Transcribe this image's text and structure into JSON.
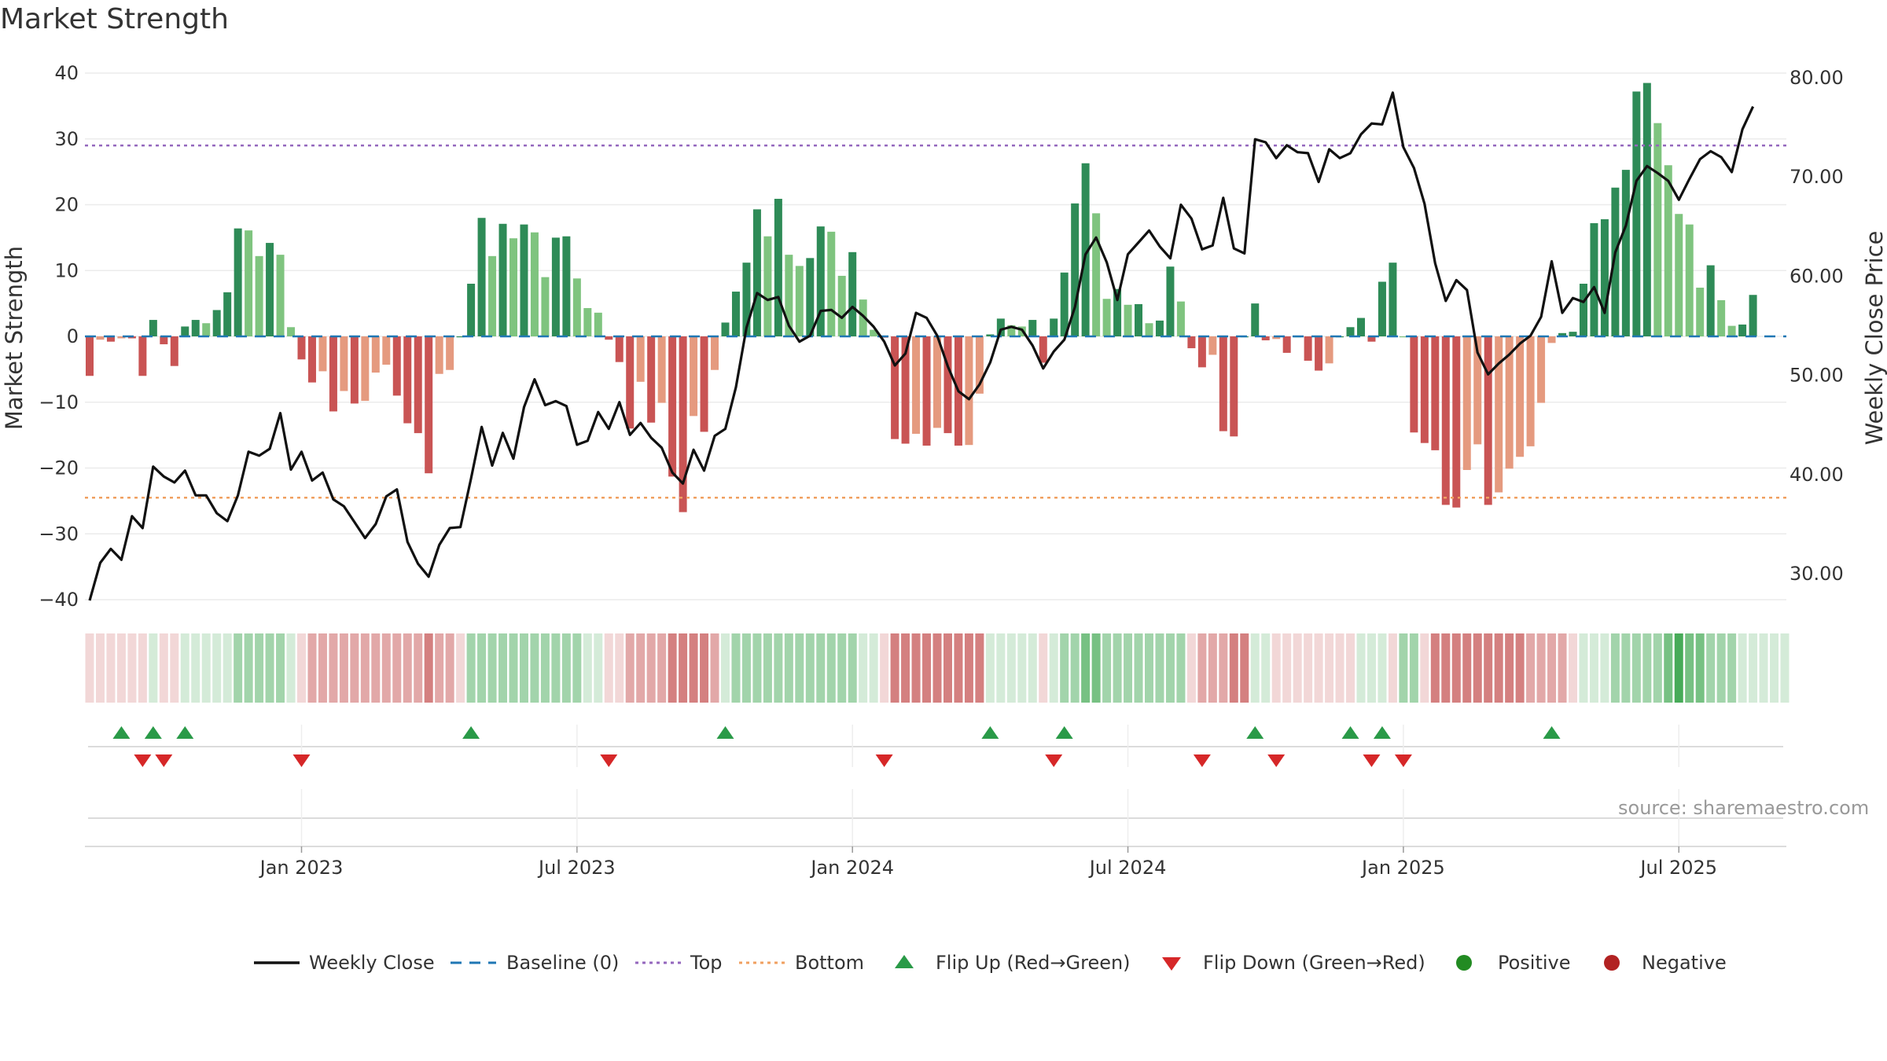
{
  "chart_data": {
    "type": "bar+line",
    "title": "Market Strength",
    "source": "source: sharemaestro.com",
    "left_axis": {
      "label": "Market Strength",
      "ylim": [
        -40,
        40
      ],
      "ticks": [
        "40",
        "30",
        "20",
        "10",
        "0",
        "−10",
        "−20",
        "−30",
        "−40"
      ],
      "tick_values": [
        40,
        30,
        20,
        10,
        0,
        -10,
        -20,
        -30,
        -40
      ]
    },
    "right_axis": {
      "label": "Weekly Close Price",
      "ylim": [
        26,
        80.5
      ],
      "ticks": [
        "80.00",
        "70.00",
        "60.00",
        "50.00",
        "40.00",
        "30.00"
      ],
      "tick_values": [
        80,
        70,
        60,
        50,
        40,
        30
      ]
    },
    "x_ticks": [
      {
        "label": "Jan 2023",
        "week": 20
      },
      {
        "label": "Jul 2023",
        "week": 46
      },
      {
        "label": "Jan 2024",
        "week": 72
      },
      {
        "label": "Jul 2024",
        "week": 98
      },
      {
        "label": "Jan 2025",
        "week": 124
      },
      {
        "label": "Jul 2025",
        "week": 150
      }
    ],
    "top_line": 29,
    "bottom_line": -24.5,
    "strength": [
      -6,
      -0.5,
      -0.8,
      -0.3,
      -0.3,
      -6,
      2.5,
      -1.2,
      -4.5,
      1.5,
      2.5,
      2,
      4,
      6.7,
      16.4,
      16.1,
      12.2,
      14.2,
      12.4,
      1.4,
      -3.5,
      -7,
      -5.3,
      -11.4,
      -8.3,
      -10.2,
      -9.8,
      -5.5,
      -4.3,
      -9,
      -13.2,
      -14.7,
      -20.8,
      -5.7,
      -5.1,
      0,
      8,
      18,
      12.2,
      17.1,
      14.9,
      17,
      15.8,
      9,
      15,
      15.2,
      8.8,
      4.3,
      3.6,
      -0.5,
      -3.9,
      -14,
      -6.9,
      -13.1,
      -10.1,
      -21.3,
      -26.7,
      -12.1,
      -14.5,
      -5.1,
      2.1,
      6.8,
      11.2,
      19.3,
      15.2,
      20.9,
      12.4,
      10.7,
      11.9,
      16.7,
      15.9,
      9.2,
      12.8,
      5.6,
      1,
      -0.2,
      -15.6,
      -16.3,
      -14.8,
      -16.6,
      -13.9,
      -14.7,
      -16.6,
      -16.5,
      -8.7,
      0.3,
      2.7,
      1.7,
      1.5,
      2.5,
      -4,
      2.7,
      9.7,
      20.2,
      26.3,
      18.7,
      5.7,
      7.2,
      4.8,
      4.9,
      2,
      2.4,
      10.6,
      5.3,
      -1.8,
      -4.7,
      -2.8,
      -14.4,
      -15.2,
      0,
      5,
      -0.6,
      -0.4,
      -2.5,
      0,
      -3.7,
      -5.2,
      -4.1,
      0,
      1.4,
      2.8,
      -0.8,
      8.3,
      11.2,
      0,
      -14.6,
      -16.2,
      -17.3,
      -25.6,
      -26,
      -20.3,
      -16.4,
      -25.6,
      -23.7,
      -20.1,
      -18.3,
      -16.7,
      -10.1,
      -1,
      0.5,
      0.7,
      8,
      17.2,
      17.8,
      22.6,
      25.3,
      37.2,
      38.5,
      32.4,
      26,
      18.6,
      17,
      7.4,
      10.8,
      5.5,
      1.6,
      1.8,
      6.3
    ],
    "weekly_close": [
      27.3,
      31.1,
      32.5,
      31.4,
      35.8,
      34.6,
      40.8,
      39.8,
      39.2,
      40.4,
      37.9,
      37.9,
      36.1,
      35.3,
      37.9,
      42.3,
      41.9,
      42.6,
      46.2,
      40.5,
      42.3,
      39.4,
      40.2,
      37.5,
      36.8,
      35.2,
      33.6,
      35,
      37.8,
      38.5,
      33.2,
      31,
      29.7,
      32.9,
      34.6,
      34.7,
      39.6,
      44.8,
      40.9,
      44.2,
      41.6,
      46.8,
      49.6,
      47,
      47.4,
      46.9,
      43,
      43.4,
      46.3,
      44.6,
      47.3,
      44,
      45.2,
      43.7,
      42.7,
      40.2,
      39.1,
      42.5,
      40.4,
      43.9,
      44.6,
      48.8,
      54.8,
      58.3,
      57.6,
      57.9,
      55,
      53.4,
      54,
      56.5,
      56.6,
      55.8,
      56.9,
      56,
      54.9,
      53.4,
      51,
      52.2,
      56.3,
      55.8,
      54,
      50.9,
      48.4,
      47.6,
      49.1,
      51.3,
      54.6,
      54.9,
      54.6,
      53,
      50.7,
      52.4,
      53.6,
      56.9,
      62.2,
      63.9,
      61.4,
      57.6,
      62.2,
      63.4,
      64.6,
      63,
      61.8,
      67.2,
      65.8,
      62.7,
      63.1,
      67.9,
      62.8,
      62.3,
      73.8,
      73.5,
      71.9,
      73.2,
      72.5,
      72.4,
      69.5,
      72.8,
      71.9,
      72.4,
      74.3,
      75.4,
      75.3,
      78.5,
      73,
      70.9,
      67.3,
      61.3,
      57.5,
      59.6,
      58.6,
      52.3,
      50.1,
      51.2,
      52.1,
      53.2,
      54,
      55.9,
      61.5,
      56.3,
      57.8,
      57.4,
      58.9,
      56.3,
      62.4,
      65.1,
      69.6,
      71.1,
      70.4,
      69.6,
      67.7,
      69.8,
      71.8,
      72.6,
      72,
      70.5,
      74.8,
      77.1
    ],
    "heat_tiers": [
      -1,
      -1,
      -1,
      -1,
      -1,
      -1,
      1,
      -1,
      -1,
      1,
      1,
      1,
      1,
      1,
      2,
      2,
      2,
      2,
      2,
      1,
      -1,
      -2,
      -2,
      -2,
      -2,
      -2,
      -2,
      -2,
      -2,
      -2,
      -2,
      -2,
      -3,
      -2,
      -2,
      -1,
      2,
      2,
      2,
      2,
      2,
      2,
      2,
      2,
      2,
      2,
      2,
      1,
      1,
      -1,
      -1,
      -2,
      -2,
      -2,
      -2,
      -3,
      -3,
      -3,
      -3,
      -2,
      1,
      2,
      2,
      2,
      2,
      2,
      2,
      2,
      2,
      2,
      2,
      2,
      2,
      1,
      1,
      -1,
      -3,
      -3,
      -3,
      -3,
      -3,
      -3,
      -3,
      -3,
      -3,
      1,
      1,
      1,
      1,
      1,
      -1,
      1,
      2,
      2,
      3,
      3,
      2,
      2,
      2,
      2,
      2,
      2,
      2,
      2,
      -1,
      -2,
      -2,
      -2,
      -3,
      -3,
      1,
      1,
      -1,
      -1,
      -1,
      -1,
      -1,
      -1,
      -1,
      -1,
      1,
      1,
      1,
      -1,
      2,
      2,
      -1,
      -3,
      -3,
      -3,
      -3,
      -3,
      -3,
      -3,
      -3,
      -3,
      -2,
      -2,
      -2,
      -2,
      -1,
      1,
      1,
      1,
      2,
      2,
      2,
      2,
      2,
      3,
      4,
      3,
      3,
      2,
      2,
      2,
      1,
      1,
      1,
      1,
      1
    ],
    "flip_up_weeks": [
      3,
      6,
      9,
      36,
      60,
      85,
      92,
      110,
      119,
      122,
      138
    ],
    "flip_down_weeks": [
      5,
      7,
      20,
      49,
      75,
      91,
      105,
      112,
      121,
      124
    ],
    "legend": [
      {
        "label": "Weekly Close",
        "kind": "line",
        "color": "#111111"
      },
      {
        "label": "Baseline (0)",
        "kind": "dash",
        "color": "#1f77b4"
      },
      {
        "label": "Top",
        "kind": "dot",
        "color": "#9467bd"
      },
      {
        "label": "Bottom",
        "kind": "dot",
        "color": "#f0a060"
      },
      {
        "label": "Flip Up (Red→Green)",
        "kind": "tri-up",
        "color": "#2a9a48"
      },
      {
        "label": "Flip Down (Green→Red)",
        "kind": "tri-down",
        "color": "#d62728"
      },
      {
        "label": "Positive",
        "kind": "circle",
        "color": "#228b22"
      },
      {
        "label": "Negative",
        "kind": "circle",
        "color": "#b22222"
      }
    ],
    "colors": {
      "strong_pos": "#2e8b57",
      "weak_pos": "#7fc47f",
      "strong_neg": "#c95454",
      "weak_neg": "#e59a7f",
      "price_line": "#111111",
      "baseline": "#1f77b4",
      "top": "#9467bd",
      "bottom": "#f0a060",
      "heat_pos": "#3da64f",
      "heat_neg": "#c24a4a"
    }
  }
}
